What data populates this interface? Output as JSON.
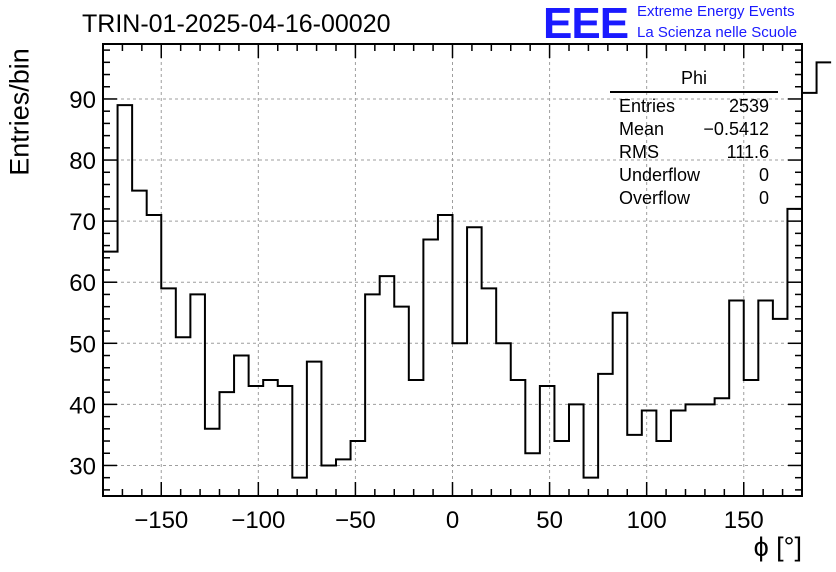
{
  "header": {
    "title": "TRIN-01-2025-04-16-00020",
    "logo": "EEE",
    "logo_line1": "Extreme Energy Events",
    "logo_line2": "La Scienza nelle Scuole"
  },
  "stats_box": {
    "title": "Phi",
    "rows": [
      {
        "label": "Entries",
        "value": "2539"
      },
      {
        "label": "Mean",
        "value": "−0.5412"
      },
      {
        "label": "RMS",
        "value": "111.6"
      },
      {
        "label": "Underflow",
        "value": "0"
      },
      {
        "label": "Overflow",
        "value": "0"
      }
    ]
  },
  "chart_data": {
    "type": "histogram",
    "title": "TRIN-01-2025-04-16-00020",
    "xlabel": "ϕ [°]",
    "ylabel": "Entries/bin",
    "xlim": [
      -180,
      180
    ],
    "ylim": [
      25,
      99
    ],
    "bin_width": 7.5,
    "x_ticks": [
      -150,
      -100,
      -50,
      0,
      50,
      100,
      150
    ],
    "x_tick_labels": [
      "−150",
      "−100",
      "−50",
      "0",
      "50",
      "100",
      "150"
    ],
    "y_ticks": [
      30,
      40,
      50,
      60,
      70,
      80,
      90
    ],
    "grid": true,
    "values": [
      65,
      89,
      75,
      71,
      59,
      51,
      58,
      36,
      42,
      48,
      43,
      44,
      43,
      28,
      47,
      30,
      31,
      34,
      58,
      61,
      56,
      44,
      67,
      71,
      50,
      69,
      59,
      50,
      44,
      32,
      43,
      34,
      40,
      28,
      45,
      55,
      35,
      39,
      34,
      39,
      40,
      40,
      41,
      57,
      44,
      57,
      54,
      72,
      91,
      96
    ],
    "bin_edges_note": "",
    "colors": {
      "line": "#000000",
      "grid": "#9e9e9e",
      "logo": "#1a1aff"
    }
  }
}
